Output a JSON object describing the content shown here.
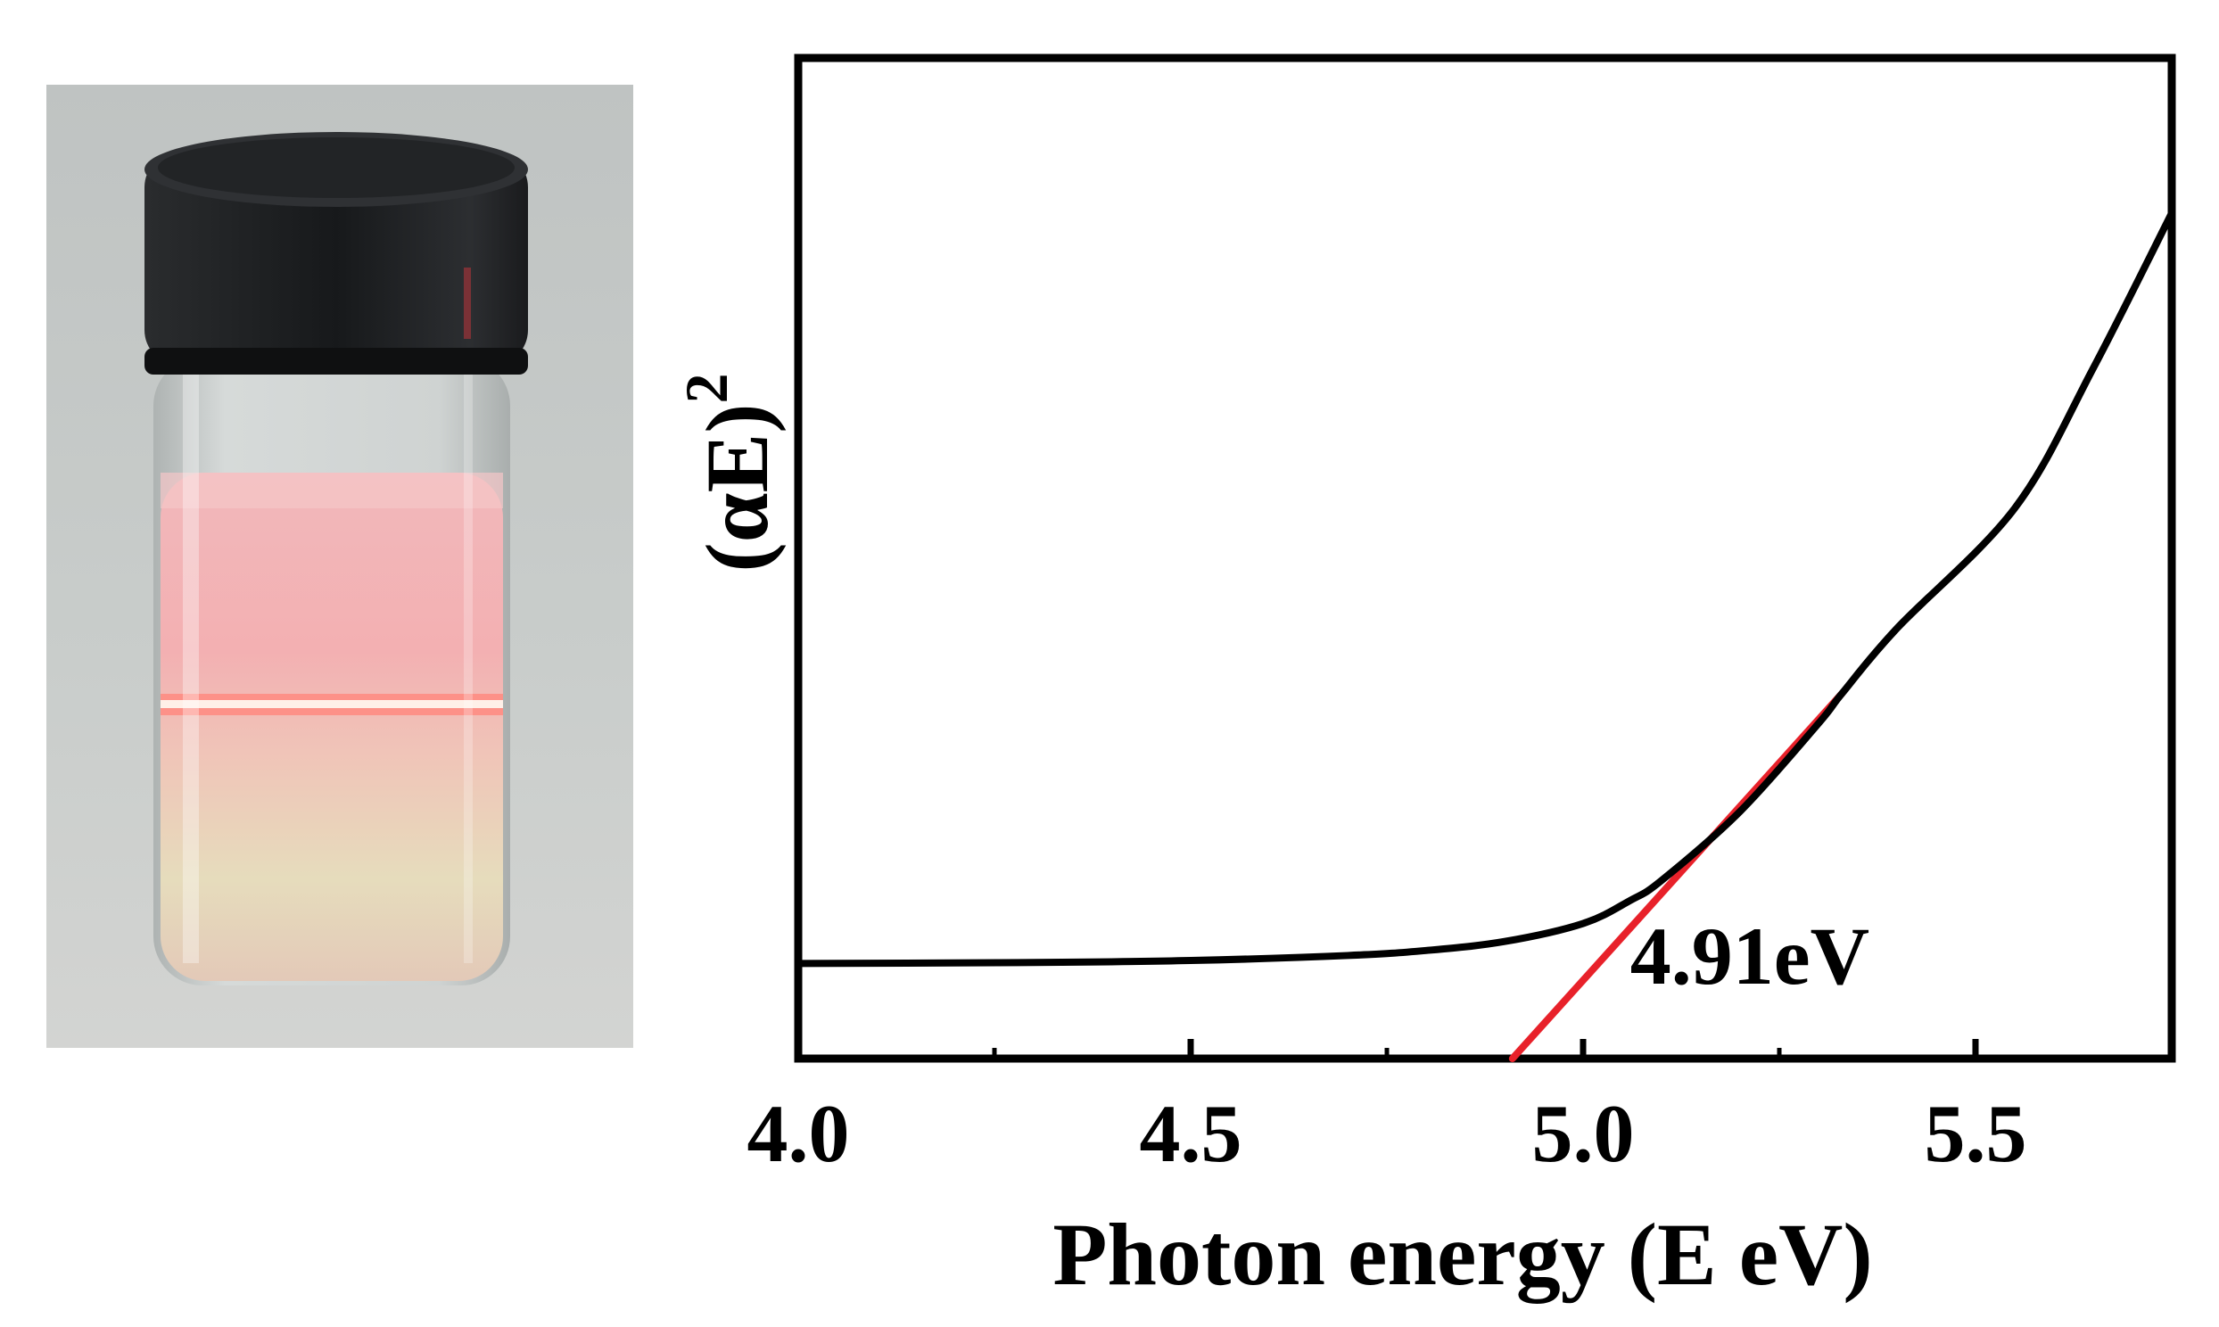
{
  "photo": {
    "subject": "vial-with-pink-solution-and-red-laser-beam",
    "colors": {
      "background": "#c7cbc9",
      "cap": "#1c1e20",
      "liquid_pink": "#f0b2b5",
      "liquid_bottom": "#e2d7b8",
      "laser": "#ff7a70"
    }
  },
  "chart_data": {
    "type": "line",
    "title": "",
    "xlabel": "Photon energy (E eV)",
    "ylabel_main": "(αE)",
    "ylabel_sup": "2",
    "xlim": [
      4.0,
      5.75
    ],
    "ylim": [
      0,
      1
    ],
    "x_ticks": [
      4.0,
      4.5,
      5.0,
      5.5
    ],
    "x_tick_labels": [
      "4.0",
      "4.5",
      "5.0",
      "5.5"
    ],
    "y_tick_labels": [],
    "grid": false,
    "legend": "none",
    "series": [
      {
        "color": "#000000",
        "points": [
          [
            4.0,
            0.095
          ],
          [
            4.3,
            0.096
          ],
          [
            4.5,
            0.098
          ],
          [
            4.7,
            0.103
          ],
          [
            4.8,
            0.108
          ],
          [
            4.9,
            0.117
          ],
          [
            5.0,
            0.135
          ],
          [
            5.06,
            0.158
          ],
          [
            5.1,
            0.178
          ],
          [
            5.2,
            0.247
          ],
          [
            5.3,
            0.335
          ],
          [
            5.33,
            0.365
          ],
          [
            5.4,
            0.43
          ],
          [
            5.55,
            0.55
          ],
          [
            5.65,
            0.69
          ],
          [
            5.75,
            0.845
          ]
        ]
      }
    ],
    "tangent_line": {
      "color": "#e8212a",
      "from": [
        4.91,
        0.0
      ],
      "to": [
        5.33,
        0.365
      ]
    },
    "annotation": {
      "text": "4.91eV",
      "x": 5.06,
      "y": 0.075
    }
  }
}
